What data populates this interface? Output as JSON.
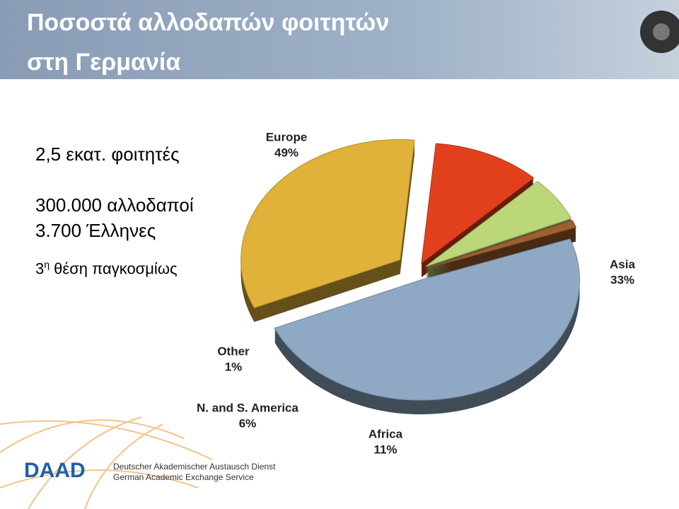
{
  "header": {
    "title_lines": [
      "Ποσοστά αλλοδαπών φοιτητών",
      "στη Γερμανία"
    ]
  },
  "facts": {
    "students": "2,5 εκατ. φοιτητές",
    "foreigners": "300.000 αλλοδαποί",
    "greeks": "3.700 Έλληνες",
    "rank": {
      "number": "3",
      "suffix": "η",
      "text": " θέση παγκοσμίως"
    }
  },
  "footer": {
    "logo": "DAAD",
    "line1": "Deutscher Akademischer Austausch Dienst",
    "line2": "German Academic Exchange Service"
  },
  "chart_data": {
    "type": "pie",
    "categories": [
      "Europe",
      "Asia",
      "Africa",
      "N. and S. America",
      "Other"
    ],
    "values": [
      49,
      33,
      11,
      6,
      1
    ],
    "value_labels": [
      "49%",
      "33%",
      "11%",
      "6%",
      "1%"
    ],
    "colors": [
      "#8fa9c4",
      "#e0b23a",
      "#e2401c",
      "#bcd77a",
      "#a0602e"
    ]
  }
}
